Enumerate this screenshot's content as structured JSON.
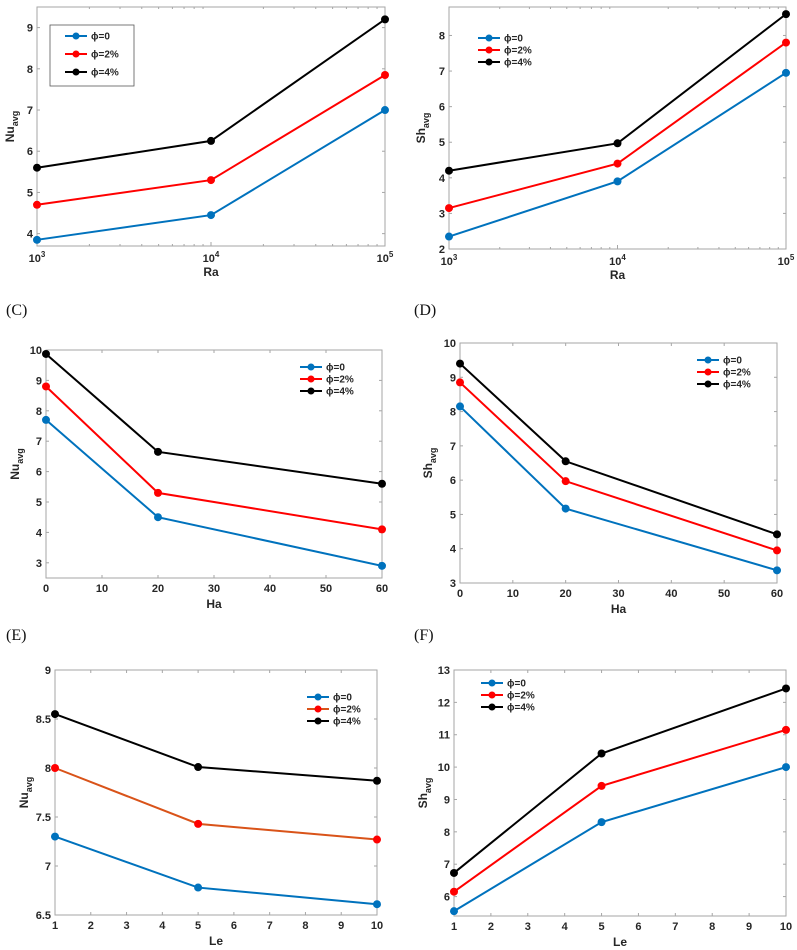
{
  "figure": {
    "panels": [
      {
        "id": "A",
        "label": ""
      },
      {
        "id": "B",
        "label": ""
      },
      {
        "id": "C",
        "label": "(C)"
      },
      {
        "id": "D",
        "label": "(D)"
      },
      {
        "id": "E",
        "label": "(E)"
      },
      {
        "id": "F",
        "label": "(F)"
      }
    ]
  },
  "chart_data": [
    {
      "id": "A",
      "type": "line",
      "title": "",
      "xlabel": "Ra",
      "ylabel": "Nu",
      "ylabel_sub": "avg",
      "xscale": "log",
      "x": [
        1000,
        10000,
        100000
      ],
      "xticks": [
        1000,
        10000,
        100000
      ],
      "xtick_labels": [
        {
          "base": "10",
          "exp": "3"
        },
        {
          "base": "10",
          "exp": "4"
        },
        {
          "base": "10",
          "exp": "5"
        }
      ],
      "xlim": [
        1000,
        100000
      ],
      "yticks": [
        4,
        5,
        6,
        7,
        8,
        9
      ],
      "ylim": [
        3.7,
        9.5
      ],
      "legend": {
        "placement": "top-left",
        "boxed": true
      },
      "series": [
        {
          "name": "ϕ=0",
          "color": "#0072BD",
          "values": [
            3.85,
            4.45,
            7.0
          ]
        },
        {
          "name": "ϕ=2%",
          "color": "#FF0000",
          "values": [
            4.7,
            5.3,
            7.85
          ]
        },
        {
          "name": "ϕ=4%",
          "color": "#000000",
          "values": [
            5.6,
            6.25,
            9.2
          ]
        }
      ]
    },
    {
      "id": "B",
      "type": "line",
      "title": "",
      "xlabel": "Ra",
      "ylabel": "Sh",
      "ylabel_sub": "avg",
      "xscale": "log",
      "x": [
        1000,
        10000,
        100000
      ],
      "xticks": [
        1000,
        10000,
        100000
      ],
      "xtick_labels": [
        {
          "base": "10",
          "exp": "3"
        },
        {
          "base": "10",
          "exp": "4"
        },
        {
          "base": "10",
          "exp": "5"
        }
      ],
      "xlim": [
        1000,
        100000
      ],
      "yticks": [
        2,
        3,
        4,
        5,
        6,
        7,
        8
      ],
      "ylim": [
        2,
        8.8
      ],
      "legend": {
        "placement": "top-left",
        "boxed": false
      },
      "series": [
        {
          "name": "ϕ=0",
          "color": "#0072BD",
          "values": [
            2.35,
            3.9,
            6.95
          ]
        },
        {
          "name": "ϕ=2%",
          "color": "#FF0000",
          "values": [
            3.15,
            4.4,
            7.8
          ]
        },
        {
          "name": "ϕ=4%",
          "color": "#000000",
          "values": [
            4.2,
            4.97,
            8.6
          ]
        }
      ]
    },
    {
      "id": "C",
      "type": "line",
      "title": "",
      "xlabel": "Ha",
      "ylabel": "Nu",
      "ylabel_sub": "avg",
      "xscale": "linear",
      "x": [
        0,
        20,
        60
      ],
      "xticks": [
        0,
        10,
        20,
        30,
        40,
        50,
        60
      ],
      "xlim": [
        0,
        60
      ],
      "yticks": [
        3,
        4,
        5,
        6,
        7,
        8,
        9,
        10
      ],
      "ylim": [
        2.5,
        10
      ],
      "legend": {
        "placement": "top-right",
        "boxed": false
      },
      "series": [
        {
          "name": "ϕ=0",
          "color": "#0072BD",
          "values": [
            7.7,
            4.5,
            2.9
          ]
        },
        {
          "name": "ϕ=2%",
          "color": "#FF0000",
          "values": [
            8.8,
            5.3,
            4.1
          ]
        },
        {
          "name": "ϕ=4%",
          "color": "#000000",
          "values": [
            9.87,
            6.65,
            5.6
          ]
        }
      ]
    },
    {
      "id": "D",
      "type": "line",
      "title": "",
      "xlabel": "Ha",
      "ylabel": "Sh",
      "ylabel_sub": "avg",
      "xscale": "linear",
      "x": [
        0,
        20,
        60
      ],
      "xticks": [
        0,
        10,
        20,
        30,
        40,
        50,
        60
      ],
      "xlim": [
        0,
        60
      ],
      "yticks": [
        3,
        4,
        5,
        6,
        7,
        8,
        9,
        10
      ],
      "ylim": [
        3,
        10
      ],
      "legend": {
        "placement": "top-right",
        "boxed": false
      },
      "series": [
        {
          "name": "ϕ=0",
          "color": "#0072BD",
          "values": [
            8.15,
            5.17,
            3.37
          ]
        },
        {
          "name": "ϕ=2%",
          "color": "#FF0000",
          "values": [
            8.85,
            5.97,
            3.95
          ]
        },
        {
          "name": "ϕ=4%",
          "color": "#000000",
          "values": [
            9.4,
            6.55,
            4.42
          ]
        }
      ]
    },
    {
      "id": "E",
      "type": "line",
      "title": "",
      "xlabel": "Le",
      "ylabel": "Nu",
      "ylabel_sub": "avg",
      "xscale": "linear",
      "x": [
        1,
        5,
        10
      ],
      "xticks": [
        1,
        2,
        3,
        4,
        5,
        6,
        7,
        8,
        9,
        10
      ],
      "xlim": [
        1,
        10
      ],
      "yticks": [
        6.5,
        7,
        7.5,
        8,
        8.5,
        9
      ],
      "ylim": [
        6.5,
        9
      ],
      "legend": {
        "placement": "top-right",
        "boxed": false
      },
      "series": [
        {
          "name": "ϕ=0",
          "color": "#0072BD",
          "marker_color": "#0072BD",
          "values": [
            7.3,
            6.78,
            6.61
          ]
        },
        {
          "name": "ϕ=2%",
          "color": "#D95319",
          "marker_color": "#FF0000",
          "values": [
            8.0,
            7.43,
            7.27
          ]
        },
        {
          "name": "ϕ=4%",
          "color": "#000000",
          "marker_color": "#000000",
          "values": [
            8.55,
            8.01,
            7.87
          ]
        }
      ]
    },
    {
      "id": "F",
      "type": "line",
      "title": "",
      "xlabel": "Le",
      "ylabel": "Sh",
      "ylabel_sub": "avg",
      "xscale": "linear",
      "x": [
        1,
        5,
        10
      ],
      "xticks": [
        1,
        2,
        3,
        4,
        5,
        6,
        7,
        8,
        9,
        10
      ],
      "xlim": [
        1,
        10
      ],
      "yticks": [
        6,
        7,
        8,
        9,
        10,
        11,
        12,
        13
      ],
      "ylim": [
        5.4,
        13
      ],
      "legend": {
        "placement": "top-left",
        "boxed": false
      },
      "series": [
        {
          "name": "ϕ=0",
          "color": "#0072BD",
          "values": [
            5.55,
            8.3,
            10.0
          ]
        },
        {
          "name": "ϕ=2%",
          "color": "#FF0000",
          "values": [
            6.15,
            9.42,
            11.15
          ]
        },
        {
          "name": "ϕ=4%",
          "color": "#000000",
          "values": [
            6.73,
            10.42,
            12.43
          ]
        }
      ]
    }
  ]
}
